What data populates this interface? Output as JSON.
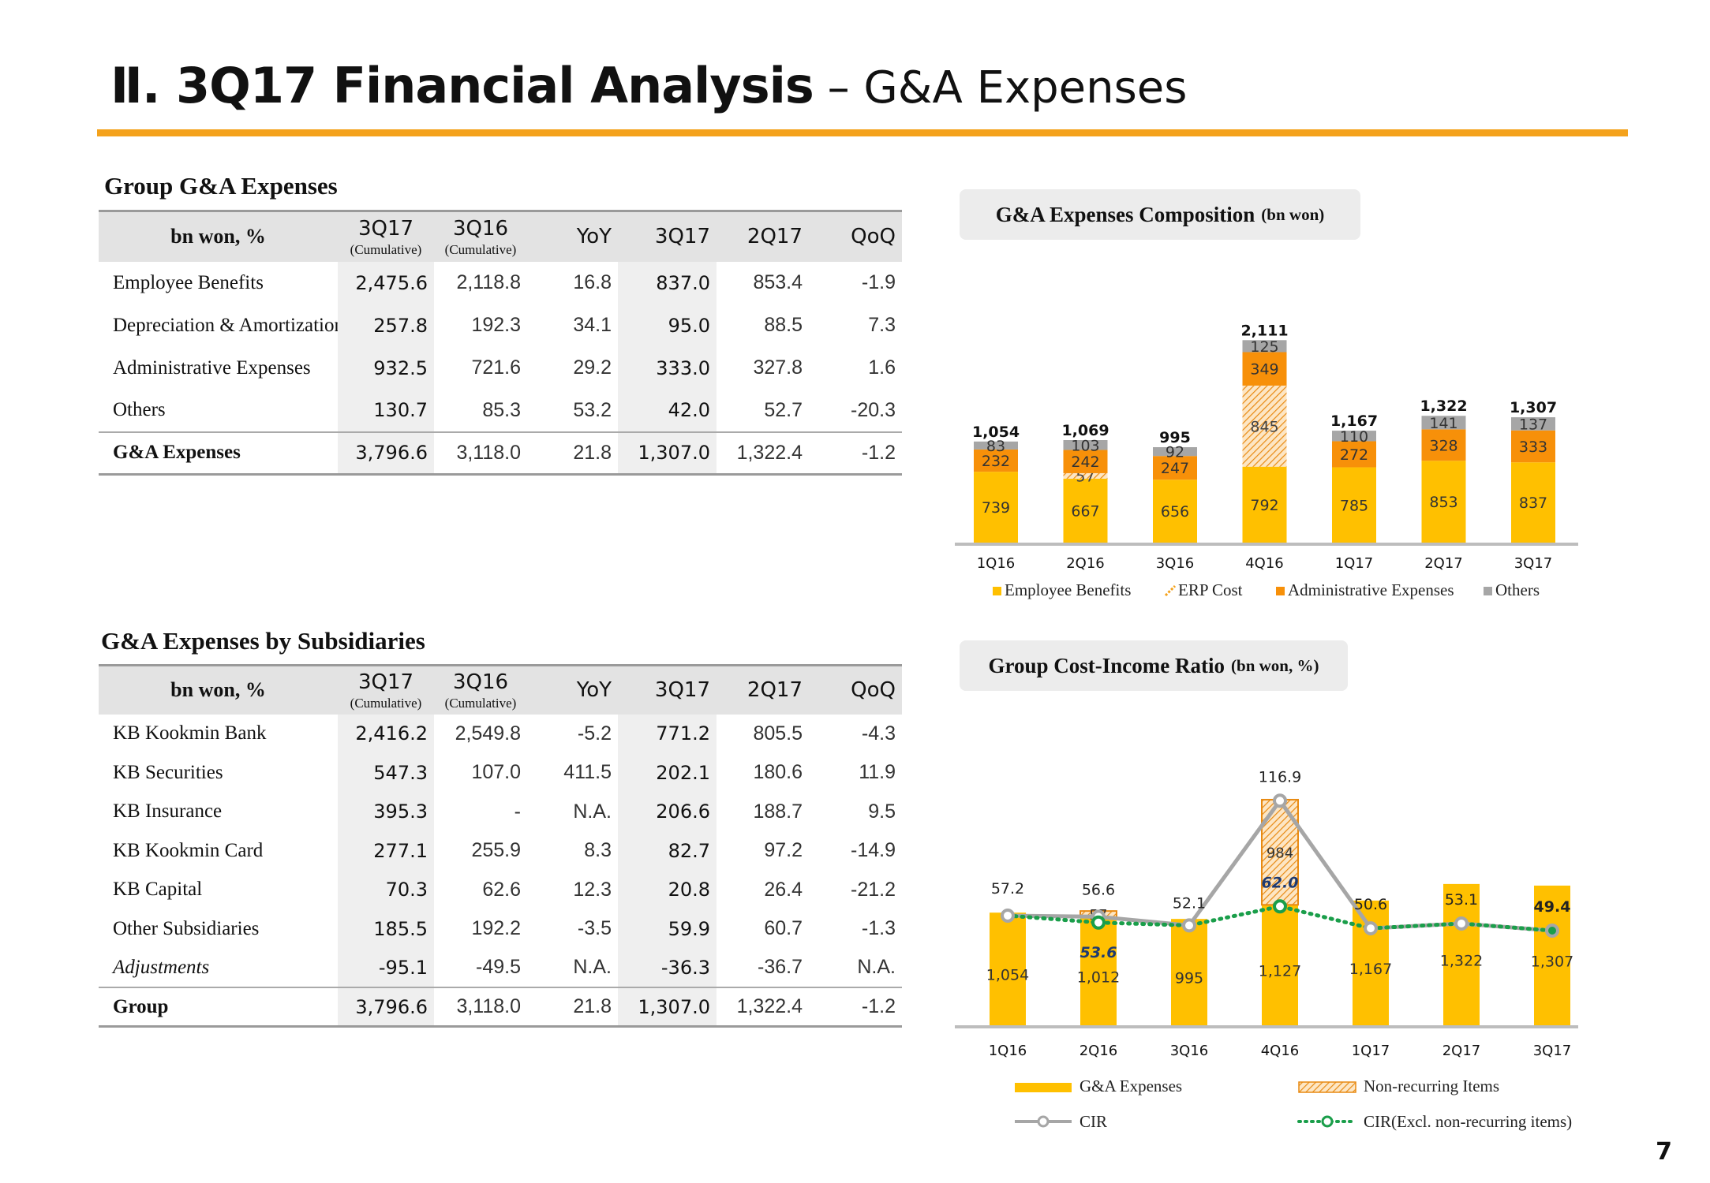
{
  "page": {
    "title_bold": "Ⅱ. 3Q17 Financial Analysis",
    "title_dash": " – ",
    "title_rest": "G&A Expenses",
    "page_number": "7",
    "accent_color": "#f4a21c"
  },
  "table1": {
    "title": "Group G&A Expenses",
    "header": {
      "label": "bn won, %",
      "cols": [
        "3Q17",
        "3Q16",
        "YoY",
        "3Q17",
        "2Q17",
        "QoQ"
      ],
      "cum1": "(Cumulative)",
      "cum2": "(Cumulative)"
    },
    "rows": [
      {
        "label": "Employee Benefits",
        "v": [
          "2,475.6",
          "2,118.8",
          "16.8",
          "837.0",
          "853.4",
          "-1.9"
        ]
      },
      {
        "label": "Depreciation & Amortization",
        "v": [
          "257.8",
          "192.3",
          "34.1",
          "95.0",
          "88.5",
          "7.3"
        ]
      },
      {
        "label": "Administrative Expenses",
        "v": [
          "932.5",
          "721.6",
          "29.2",
          "333.0",
          "327.8",
          "1.6"
        ]
      },
      {
        "label": "Others",
        "v": [
          "130.7",
          "85.3",
          "53.2",
          "42.0",
          "52.7",
          "-20.3"
        ]
      }
    ],
    "total": {
      "label": "G&A Expenses",
      "v": [
        "3,796.6",
        "3,118.0",
        "21.8",
        "1,307.0",
        "1,322.4",
        "-1.2"
      ]
    }
  },
  "table2": {
    "title": "G&A Expenses by Subsidiaries",
    "header": {
      "label": "bn won, %",
      "cols": [
        "3Q17",
        "3Q16",
        "YoY",
        "3Q17",
        "2Q17",
        "QoQ"
      ],
      "cum1": "(Cumulative)",
      "cum2": "(Cumulative)"
    },
    "rows": [
      {
        "label": "KB Kookmin Bank",
        "v": [
          "2,416.2",
          "2,549.8",
          "-5.2",
          "771.2",
          "805.5",
          "-4.3"
        ]
      },
      {
        "label": "KB Securities",
        "v": [
          "547.3",
          "107.0",
          "411.5",
          "202.1",
          "180.6",
          "11.9"
        ]
      },
      {
        "label": "KB Insurance",
        "v": [
          "395.3",
          "-",
          "N.A.",
          "206.6",
          "188.7",
          "9.5"
        ]
      },
      {
        "label": "KB Kookmin Card",
        "v": [
          "277.1",
          "255.9",
          "8.3",
          "82.7",
          "97.2",
          "-14.9"
        ]
      },
      {
        "label": "KB Capital",
        "v": [
          "70.3",
          "62.6",
          "12.3",
          "20.8",
          "26.4",
          "-21.2"
        ]
      },
      {
        "label": "Other Subsidiaries",
        "v": [
          "185.5",
          "192.2",
          "-3.5",
          "59.9",
          "60.7",
          "-1.3"
        ]
      },
      {
        "label": "Adjustments",
        "v": [
          "-95.1",
          "-49.5",
          "N.A.",
          "-36.3",
          "-36.7",
          "N.A."
        ]
      }
    ],
    "total": {
      "label": "Group",
      "v": [
        "3,796.6",
        "3,118.0",
        "21.8",
        "1,307.0",
        "1,322.4",
        "-1.2"
      ]
    }
  },
  "chart1_title": {
    "main": "G&A Expenses Composition",
    "unit": "(bn won)"
  },
  "chart2_title": {
    "main": "Group Cost-Income Ratio",
    "unit": "(bn won, %)"
  },
  "chart_data": [
    {
      "type": "bar",
      "stacked": true,
      "categories": [
        "1Q16",
        "2Q16",
        "3Q16",
        "4Q16",
        "1Q17",
        "2Q17",
        "3Q17"
      ],
      "series": [
        {
          "name": "Employee Benefits",
          "color": "#ffc000",
          "values": [
            739,
            667,
            656,
            792,
            785,
            853,
            837
          ]
        },
        {
          "name": "ERP Cost",
          "color": "#f4a21c",
          "pattern": "hatched",
          "values": [
            0,
            57,
            0,
            845,
            0,
            0,
            0
          ]
        },
        {
          "name": "Administrative Expenses",
          "color": "#f79009",
          "values": [
            232,
            242,
            247,
            349,
            272,
            328,
            333
          ]
        },
        {
          "name": "Others",
          "color": "#a6a6a6",
          "values": [
            83,
            103,
            92,
            125,
            110,
            141,
            137
          ]
        }
      ],
      "totals": [
        "1,054",
        "1,069",
        "995",
        "2,111",
        "1,167",
        "1,322",
        "1,307"
      ],
      "legend_position": "bottom"
    },
    {
      "type": "bar",
      "categories": [
        "1Q16",
        "2Q16",
        "3Q16",
        "4Q16",
        "1Q17",
        "2Q17",
        "3Q17"
      ],
      "bar_series": [
        {
          "name": "G&A Expenses",
          "color": "#ffc000",
          "values": [
            1054,
            1012,
            995,
            1127,
            1167,
            1322,
            1307
          ],
          "labels": [
            "1,054",
            "1,012",
            "995",
            "1,127",
            "1,167",
            "1,322",
            "1,307"
          ]
        },
        {
          "name": "Non-recurring Items",
          "color": "#f4a21c",
          "pattern": "hatched",
          "values": [
            0,
            57,
            0,
            984,
            0,
            0,
            0
          ]
        }
      ],
      "line_series": [
        {
          "name": "CIR",
          "color": "#a6a6a6",
          "values": [
            57.2,
            56.6,
            52.1,
            116.9,
            50.6,
            53.1,
            49.4
          ]
        },
        {
          "name": "CIR(Excl. non-recurring items)",
          "color": "#1a9e4a",
          "values": [
            57.2,
            53.6,
            52.1,
            62.0,
            50.6,
            53.1,
            49.4
          ]
        }
      ],
      "cir_labels": [
        "57.2",
        "56.6",
        "52.1",
        "116.9",
        "50.6",
        "53.1",
        "49.4"
      ],
      "excl_labels": {
        "2Q16": "53.6",
        "4Q16": "62.0"
      },
      "legend_position": "bottom"
    }
  ]
}
